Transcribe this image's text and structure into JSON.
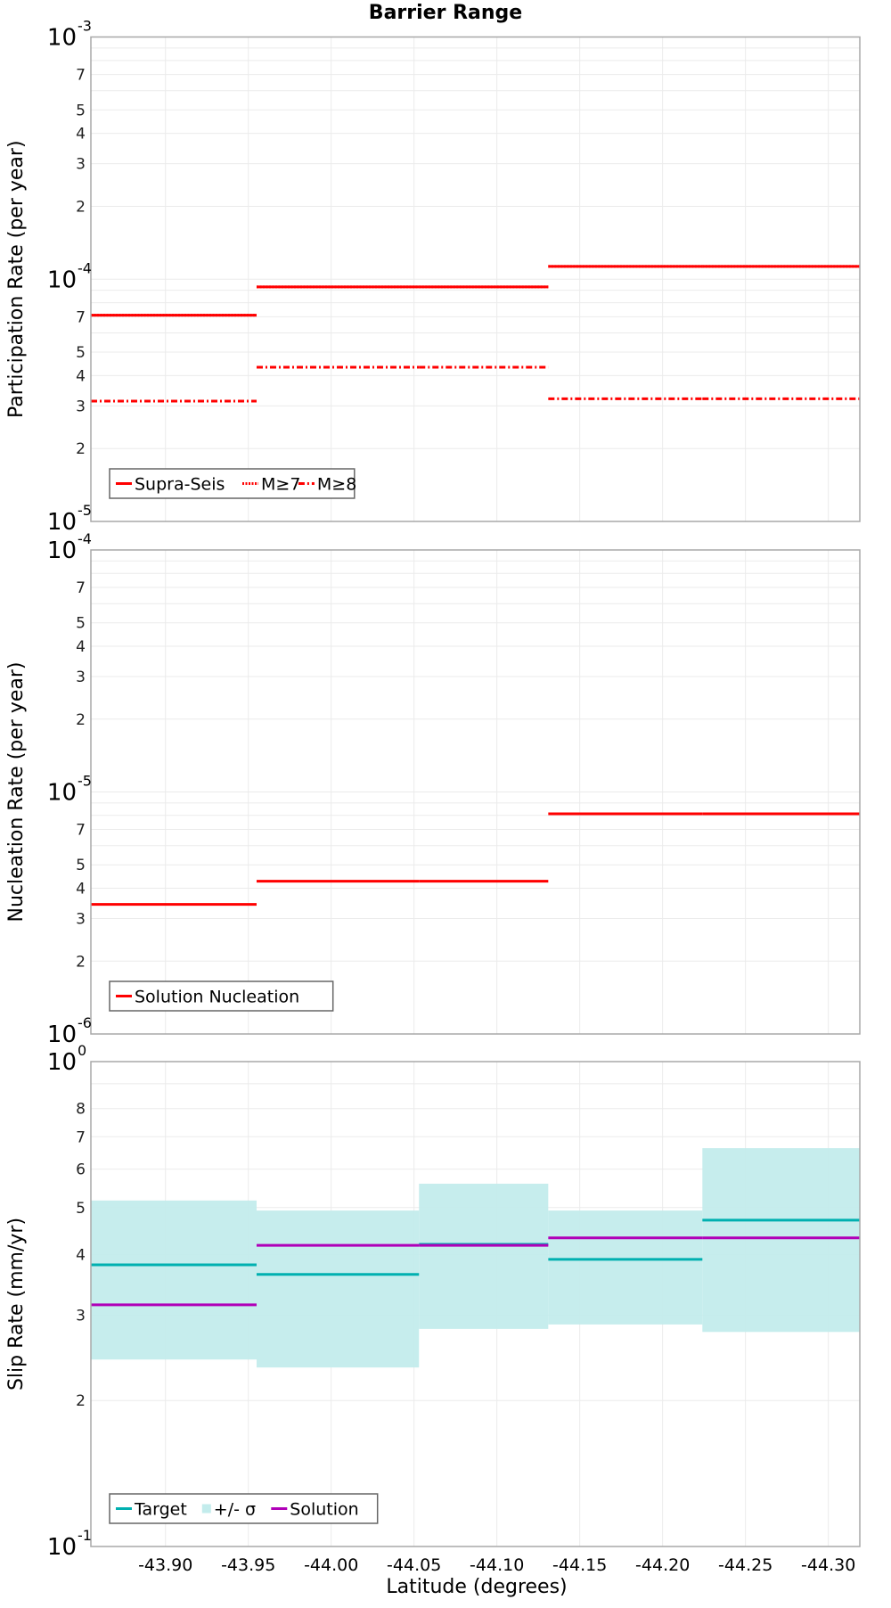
{
  "chart_data": {
    "type": "line",
    "title": "Barrier Range",
    "xlabel": "Latitude (degrees)",
    "x_ticks": [
      "-43.90",
      "-43.95",
      "-44.00",
      "-44.05",
      "-44.10",
      "-44.15",
      "-44.20",
      "-44.25",
      "-44.30"
    ],
    "x_tick_values": [
      -43.9,
      -43.95,
      -44.0,
      -44.05,
      -44.1,
      -44.15,
      -44.2,
      -44.25,
      -44.3
    ],
    "xlim": [
      -43.855,
      -44.319
    ],
    "segments": [
      {
        "x_start": -43.855,
        "x_end": -43.955
      },
      {
        "x_start": -43.955,
        "x_end": -44.053
      },
      {
        "x_start": -44.053,
        "x_end": -44.131
      },
      {
        "x_start": -44.131,
        "x_end": -44.224
      },
      {
        "x_start": -44.224,
        "x_end": -44.319
      }
    ],
    "panels": [
      {
        "name": "participation",
        "ylabel": "Participation Rate (per year)",
        "yscale": "log",
        "ylim": [
          1e-05,
          0.001
        ],
        "decade_labels": [
          {
            "base": "10",
            "exp": "-3"
          },
          {
            "base": "10",
            "exp": "-4"
          },
          {
            "base": "10",
            "exp": "-5"
          }
        ],
        "minor_labels": [
          "7",
          "5",
          "4",
          "3",
          "2"
        ],
        "legend": [
          {
            "label": "Supra-Seis",
            "style": "solid",
            "color": "#ff0000"
          },
          {
            "label": "M≥7",
            "style": "dotted",
            "color": "#ff0000"
          },
          {
            "label": "M≥8",
            "style": "dashdot",
            "color": "#ff0000"
          }
        ],
        "series": [
          {
            "name": "Supra-Seis",
            "style": "solid",
            "color": "#ff0000",
            "values": [
              7.1e-05,
              9.3e-05,
              9.3e-05,
              0.000113,
              0.000113
            ]
          },
          {
            "name": "M≥7",
            "style": "dotted",
            "color": "#ff0000",
            "values": [
              7.1e-05,
              9.3e-05,
              9.3e-05,
              0.000113,
              0.000113
            ]
          },
          {
            "name": "M≥8",
            "style": "dashdot",
            "color": "#ff0000",
            "values": [
              3.14e-05,
              4.33e-05,
              4.33e-05,
              3.21e-05,
              3.21e-05
            ]
          }
        ]
      },
      {
        "name": "nucleation",
        "ylabel": "Nucleation Rate (per year)",
        "yscale": "log",
        "ylim": [
          1e-06,
          0.0001
        ],
        "decade_labels": [
          {
            "base": "10",
            "exp": "-4"
          },
          {
            "base": "10",
            "exp": "-5"
          },
          {
            "base": "10",
            "exp": "-6"
          }
        ],
        "minor_labels": [
          "7",
          "5",
          "4",
          "3",
          "2"
        ],
        "legend": [
          {
            "label": "Solution Nucleation",
            "style": "solid",
            "color": "#ff0000"
          }
        ],
        "series": [
          {
            "name": "Solution Nucleation",
            "style": "solid",
            "color": "#ff0000",
            "values": [
              3.43e-06,
              4.28e-06,
              4.28e-06,
              8.12e-06,
              8.12e-06
            ]
          }
        ]
      },
      {
        "name": "slip",
        "ylabel": "Slip Rate (mm/yr)",
        "yscale": "log",
        "ylim": [
          0.1,
          1.0
        ],
        "decade_labels": [
          {
            "base": "10",
            "exp": "0"
          },
          {
            "base": "10",
            "exp": "-1"
          }
        ],
        "minor_labels": [
          "8",
          "7",
          "6",
          "5",
          "4",
          "3",
          "2"
        ],
        "legend": [
          {
            "label": "Target",
            "style": "solid",
            "color": "#00b0b0"
          },
          {
            "label": "+/- σ",
            "style": "box",
            "color": "#c3ecec"
          },
          {
            "label": "Solution",
            "style": "solid",
            "color": "#b000b8"
          }
        ],
        "bands": {
          "name": "+/- σ",
          "color": "#c3ecec",
          "upper": [
            0.517,
            0.493,
            0.56,
            0.493,
            0.663
          ],
          "lower": [
            0.243,
            0.234,
            0.281,
            0.287,
            0.277
          ]
        },
        "series": [
          {
            "name": "Target",
            "style": "solid",
            "color": "#00b0b0",
            "values": [
              0.381,
              0.364,
              0.42,
              0.391,
              0.471
            ]
          },
          {
            "name": "Solution",
            "style": "solid",
            "color": "#b000b8",
            "values": [
              0.315,
              0.418,
              0.418,
              0.433,
              0.433
            ]
          }
        ]
      }
    ]
  }
}
